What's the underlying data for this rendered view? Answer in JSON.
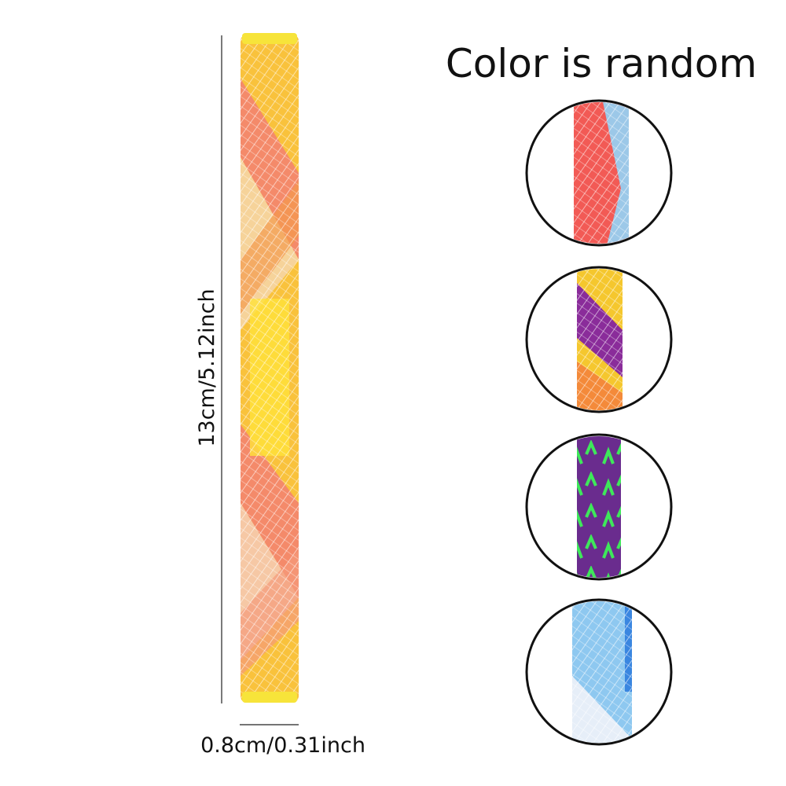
{
  "title": "Color is random",
  "length_label": "13cm/5.12inch",
  "width_label": "0.8cm/0.31inch"
}
